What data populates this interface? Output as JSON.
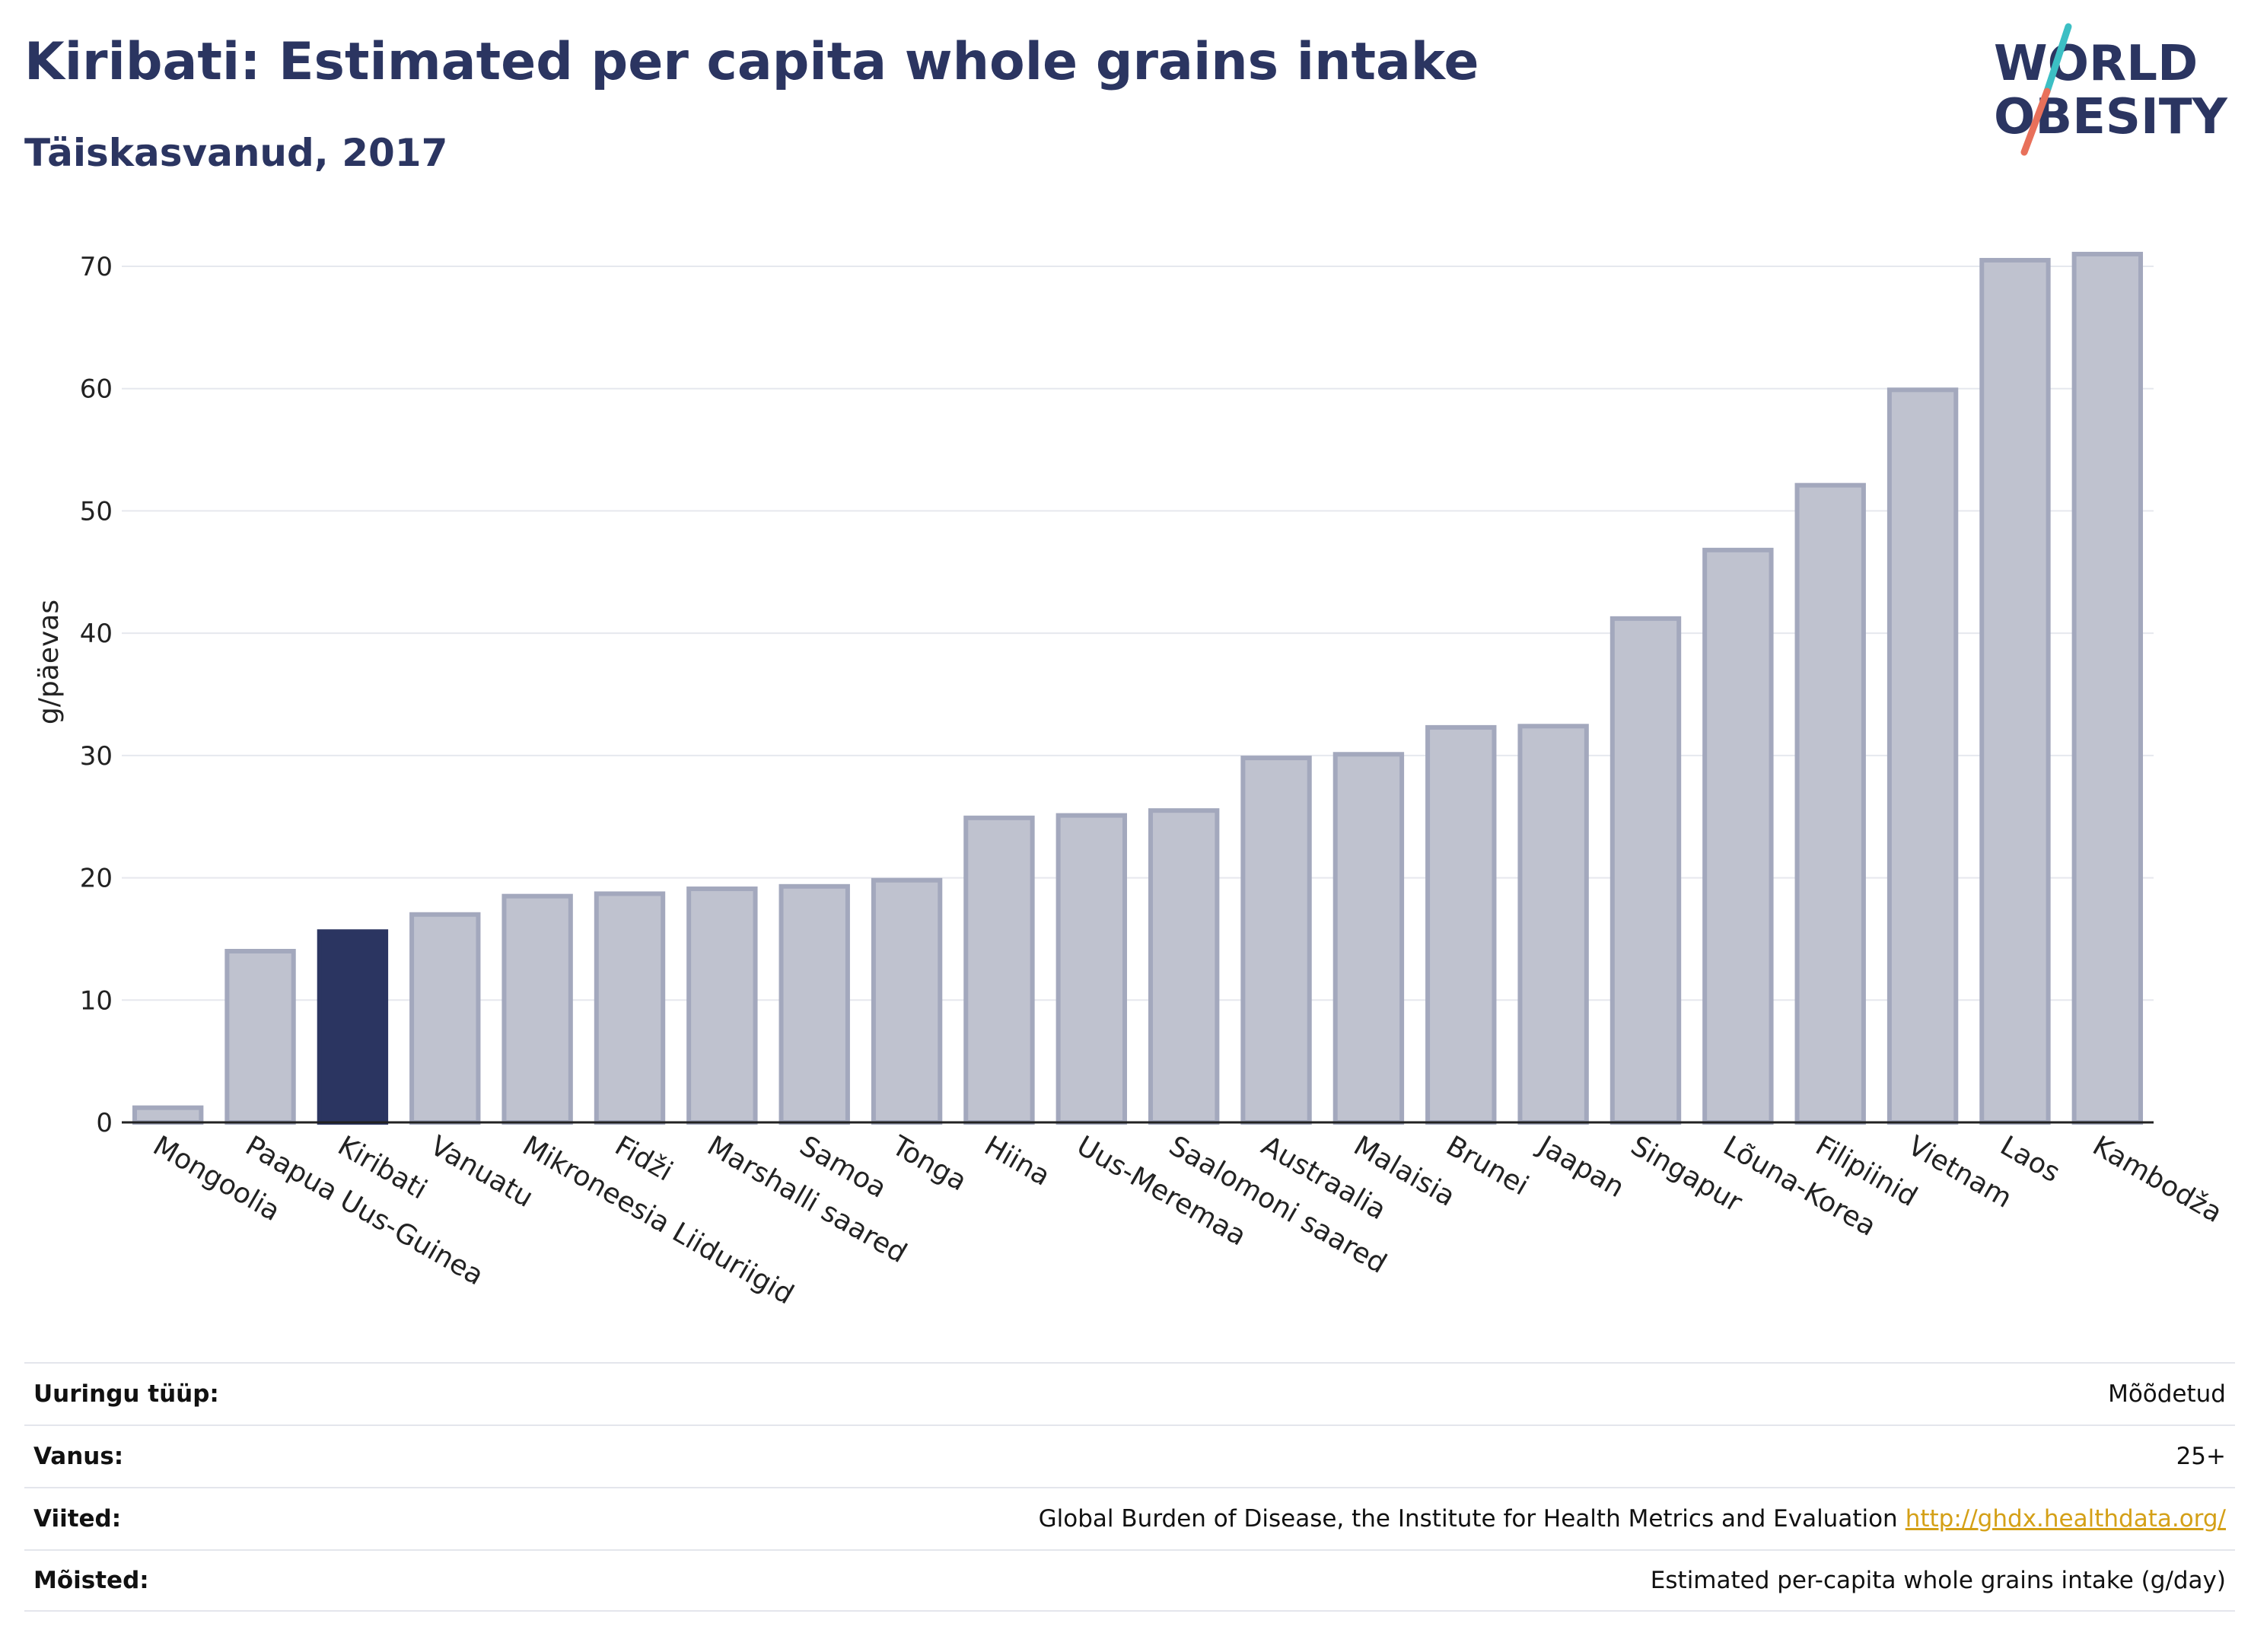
{
  "header": {
    "title": "Kiribati: Estimated per capita whole grains intake",
    "subtitle": "Täiskasvanud, 2017"
  },
  "logo": {
    "line1": "WORLD",
    "line2": "OBESITY",
    "slash_colors": [
      "#3cbfc4",
      "#e8705a"
    ],
    "text_color": "#2b3561"
  },
  "chart_data": {
    "type": "bar",
    "ylabel": "g/päevas",
    "ylim": [
      0,
      75
    ],
    "yticks": [
      0,
      10,
      20,
      30,
      40,
      50,
      60,
      70
    ],
    "grid": true,
    "categories": [
      "Mongoolia",
      "Paapua Uus-Guinea",
      "Kiribati",
      "Vanuatu",
      "Mikroneesia Liiduriigid",
      "Fidži",
      "Marshalli saared",
      "Samoa",
      "Tonga",
      "Hiina",
      "Uus-Meremaa",
      "Saalomoni saared",
      "Austraalia",
      "Malaisia",
      "Brunei",
      "Jaapan",
      "Singapur",
      "Lõuna-Korea",
      "Filipiinid",
      "Vietnam",
      "Laos",
      "Kambodža"
    ],
    "values": [
      1.2,
      14.0,
      15.6,
      17.0,
      18.5,
      18.7,
      19.1,
      19.3,
      19.8,
      24.9,
      25.1,
      25.5,
      29.8,
      30.1,
      32.3,
      32.4,
      41.2,
      46.8,
      52.1,
      59.9,
      70.5,
      71.0
    ],
    "highlight": "Kiribati",
    "colors": {
      "bar": "#bfc2cf",
      "bar_border": "#a3a8bd",
      "highlight": "#2b3561",
      "grid": "#e6e8ee",
      "axis": "#222222"
    }
  },
  "meta": {
    "rows": [
      {
        "label": "Uuringu tüüp:",
        "value": "Mõõdetud",
        "link": ""
      },
      {
        "label": "Vanus:",
        "value": "25+",
        "link": ""
      },
      {
        "label": "Viited:",
        "value": "Global Burden of Disease, the Institute for Health Metrics and Evaluation",
        "link": "http://ghdx.healthdata.org/"
      },
      {
        "label": "Mõisted:",
        "value": "Estimated per-capita whole grains intake (g/day)",
        "link": ""
      }
    ]
  }
}
